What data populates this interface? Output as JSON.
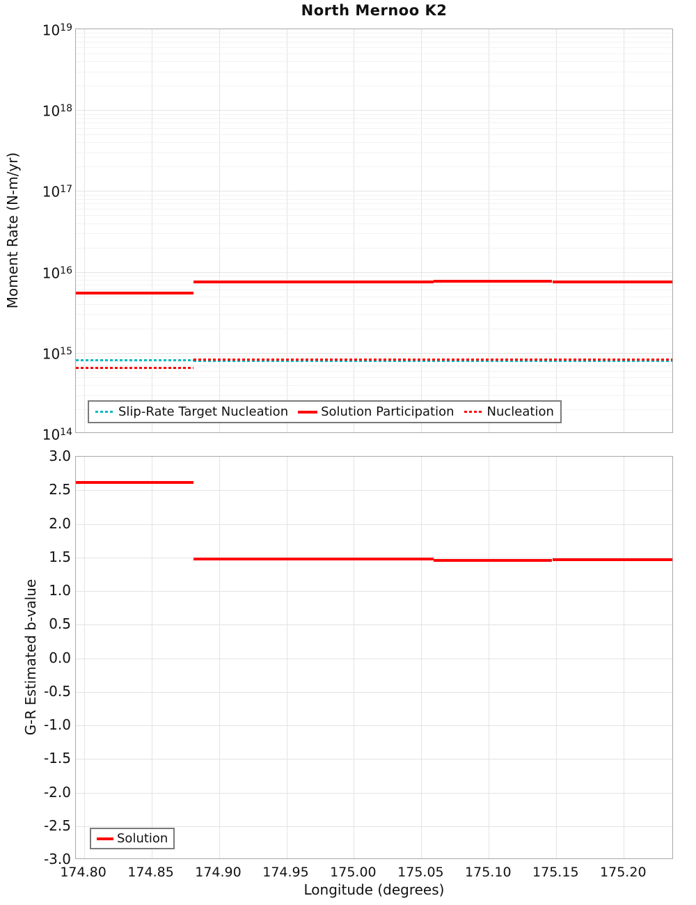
{
  "title": "North Mernoo K2",
  "colors": {
    "red": "#ff0000",
    "cyan": "#00b8bf",
    "grid_major": "#e3e3e3",
    "grid_minor": "#f2f2f2",
    "axis_border": "#a8a8a8",
    "legend_border": "#7a7a7a",
    "text": "#111111"
  },
  "chart_data": [
    {
      "type": "line",
      "title": "North Mernoo K2",
      "ylabel": "Moment Rate (N-m/yr)",
      "xlabel": "",
      "yscale": "log",
      "ylim": [
        100000000000000.0,
        1e+19
      ],
      "xlim": [
        174.794,
        175.237
      ],
      "grid": true,
      "legend_position": "lower left",
      "legend": [
        "Slip-Rate Target Nucleation",
        "Solution Participation",
        "Nucleation"
      ],
      "ytick_exponents": [
        19,
        18,
        17,
        16,
        15,
        14
      ],
      "xticks": [
        {
          "value": 174.8,
          "label": "174.80"
        },
        {
          "value": 174.85,
          "label": "174.85"
        },
        {
          "value": 174.9,
          "label": "174.90"
        },
        {
          "value": 174.95,
          "label": "174.95"
        },
        {
          "value": 175.0,
          "label": "175.00"
        },
        {
          "value": 175.05,
          "label": "175.05"
        },
        {
          "value": 175.1,
          "label": "175.10"
        },
        {
          "value": 175.15,
          "label": "175.15"
        },
        {
          "value": 175.2,
          "label": "175.20"
        }
      ],
      "series": [
        {
          "name": "Slip-Rate Target Nucleation",
          "style": "dotted",
          "color": "#00b8bf",
          "segments": [
            {
              "x": [
                174.794,
                174.881
              ],
              "y": 810000000000000.0
            },
            {
              "x": [
                174.881,
                175.237
              ],
              "y": 790000000000000.0
            }
          ]
        },
        {
          "name": "Solution Participation",
          "style": "solid",
          "color": "#ff0000",
          "segments": [
            {
              "x": [
                174.794,
                174.881
              ],
              "y": 5500000000000000.0
            },
            {
              "x": [
                174.881,
                175.059
              ],
              "y": 7500000000000000.0
            },
            {
              "x": [
                175.059,
                175.147
              ],
              "y": 7600000000000000.0
            },
            {
              "x": [
                175.147,
                175.237
              ],
              "y": 7550000000000000.0
            }
          ]
        },
        {
          "name": "Nucleation",
          "style": "dotted",
          "color": "#ff0000",
          "segments": [
            {
              "x": [
                174.794,
                174.881
              ],
              "y": 650000000000000.0
            },
            {
              "x": [
                174.881,
                175.237
              ],
              "y": 820000000000000.0
            }
          ]
        }
      ]
    },
    {
      "type": "line",
      "title": "",
      "ylabel": "G-R Estimated b-value",
      "xlabel": "Longitude (degrees)",
      "yscale": "linear",
      "ylim": [
        -3.0,
        3.0
      ],
      "xlim": [
        174.794,
        175.237
      ],
      "grid": true,
      "legend_position": "lower left",
      "legend": [
        "Solution"
      ],
      "yticks": [
        {
          "value": 3.0,
          "label": "3.0"
        },
        {
          "value": 2.5,
          "label": "2.5"
        },
        {
          "value": 2.0,
          "label": "2.0"
        },
        {
          "value": 1.5,
          "label": "1.5"
        },
        {
          "value": 1.0,
          "label": "1.0"
        },
        {
          "value": 0.5,
          "label": "0.5"
        },
        {
          "value": 0.0,
          "label": "0.0"
        },
        {
          "value": -0.5,
          "label": "-0.5"
        },
        {
          "value": -1.0,
          "label": "-1.0"
        },
        {
          "value": -1.5,
          "label": "-1.5"
        },
        {
          "value": -2.0,
          "label": "-2.0"
        },
        {
          "value": -2.5,
          "label": "-2.5"
        },
        {
          "value": -3.0,
          "label": "-3.0"
        }
      ],
      "xticks": [
        {
          "value": 174.8,
          "label": "174.80"
        },
        {
          "value": 174.85,
          "label": "174.85"
        },
        {
          "value": 174.9,
          "label": "174.90"
        },
        {
          "value": 174.95,
          "label": "174.95"
        },
        {
          "value": 175.0,
          "label": "175.00"
        },
        {
          "value": 175.05,
          "label": "175.05"
        },
        {
          "value": 175.1,
          "label": "175.10"
        },
        {
          "value": 175.15,
          "label": "175.15"
        },
        {
          "value": 175.2,
          "label": "175.20"
        }
      ],
      "series": [
        {
          "name": "Solution",
          "style": "solid",
          "color": "#ff0000",
          "segments": [
            {
              "x": [
                174.794,
                174.881
              ],
              "y": 2.62
            },
            {
              "x": [
                174.881,
                175.059
              ],
              "y": 1.48
            },
            {
              "x": [
                175.059,
                175.147
              ],
              "y": 1.46
            },
            {
              "x": [
                175.147,
                175.237
              ],
              "y": 1.47
            }
          ]
        }
      ]
    }
  ]
}
